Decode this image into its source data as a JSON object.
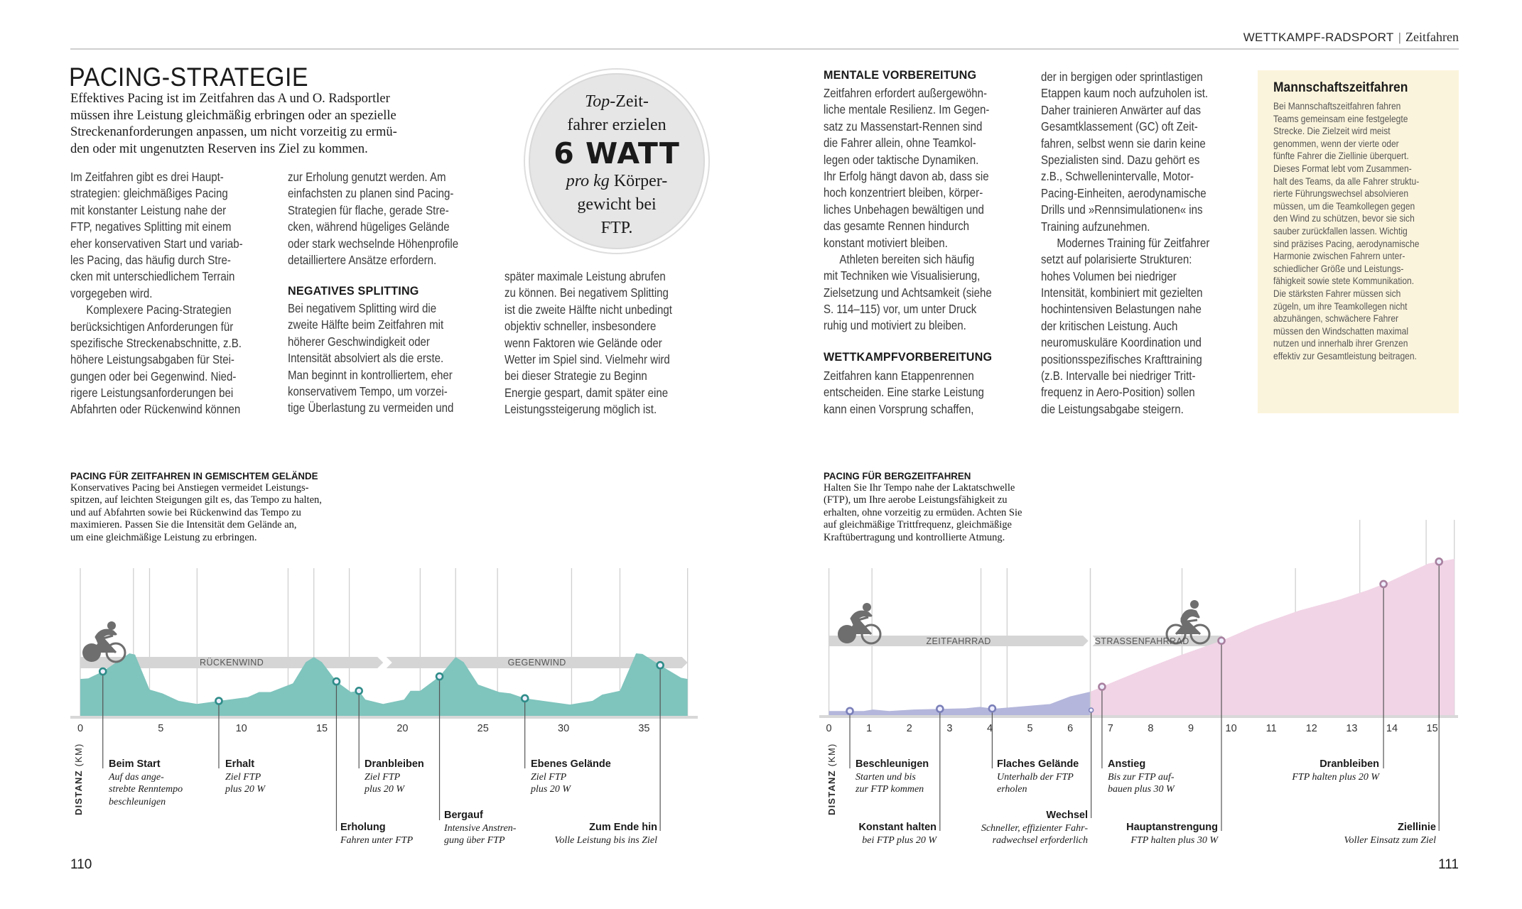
{
  "running_head": {
    "section": "WETTKAMPF-RADSPORT",
    "separator": "|",
    "subsection": "Zeitfahren"
  },
  "left_page": {
    "title": "PACING-STRATEGIE",
    "intro_lines": [
      "Effektives Pacing ist im Zeitfahren das A und O. Radsportler",
      "müssen ihre Leistung gleichmäßig erbringen oder an spezielle",
      "Streckenanforderungen anpassen, um nicht vorzeitig zu ermü-",
      "den oder mit ungenutzten Reserven ins Ziel zu kommen."
    ],
    "col1": [
      [
        "Im Zeitfahren gibt es drei Haupt-",
        "strategien: gleichmäßiges Pacing",
        "mit konstanter Leistung nahe der",
        "FTP, negatives Splitting mit einem",
        "eher konservativen Start und variab-",
        "les Pacing, das häufig durch Stre-",
        "cken mit unterschiedlichem Terrain",
        "vorgegeben wird."
      ],
      [
        "Komplexere Pacing-Strategien",
        "berücksichtigen Anforderungen für",
        "spezifische Streckenabschnitte, z.B.",
        "höhere Leistungsabgaben für Stei-",
        "gungen oder bei Gegenwind. Nied-",
        "rigere Leistungsanforderungen bei",
        "Abfahrten oder Rückenwind können"
      ]
    ],
    "col2a": [
      [
        "zur Erholung genutzt werden. Am",
        "einfachsten zu planen sind Pacing-",
        "Strategien für flache, gerade Stre-",
        "cken, während hügeliges Gelände",
        "oder stark wechselnde Höhenprofile",
        "detailliertere Ansätze erfordern."
      ]
    ],
    "col2_heading": "NEGATIVES SPLITTING",
    "col2b": [
      [
        "Bei negativem Splitting wird die",
        "zweite Hälfte beim Zeitfahren mit",
        "höherer Geschwindigkeit oder",
        "Intensität absolviert als die erste.",
        "Man beginnt in kontrolliertem, eher",
        "konservativem Tempo, um vorzei-",
        "tige Überlastung zu vermeiden und"
      ]
    ],
    "col3": [
      [
        "später maximale Leistung abrufen",
        "zu können. Bei negativem Splitting",
        "ist die zweite Hälfte nicht unbedingt",
        "objektiv schneller, insbesondere",
        "wenn Faktoren wie Gelände oder",
        "Wetter im Spiel sind. Vielmehr wird",
        "bei dieser Strategie zu Beginn",
        "Energie gespart, damit später eine",
        "Leistungssteigerung möglich ist."
      ]
    ],
    "quote": {
      "top_italic": "Top",
      "line1_rest": "-Zeit-",
      "line2": "fahrer erzielen",
      "big": "6 WATT",
      "line4_italic": "pro kg",
      "line4_rest": " Körper-",
      "line5": "gewicht bei",
      "line6": "FTP."
    },
    "page_number": "110"
  },
  "right_page": {
    "col1_heading": "MENTALE VORBEREITUNG",
    "col1": [
      [
        "Zeitfahren erfordert außergewöhn-",
        "liche mentale Resilienz. Im Gegen-",
        "satz zu Massenstart-Rennen sind",
        "die Fahrer allein, ohne Teamkol-",
        "legen oder taktische Dynamiken.",
        "Ihr Erfolg hängt davon ab, dass sie",
        "hoch konzentriert bleiben, körper-",
        "liches Unbehagen bewältigen und",
        "das gesamte Rennen hindurch",
        "konstant motiviert bleiben."
      ],
      [
        "Athleten bereiten sich häufig",
        "mit Techniken wie Visualisierung,",
        "Zielsetzung und Achtsamkeit (siehe",
        "S. 114–115) vor, um unter Druck",
        "ruhig und motiviert zu bleiben."
      ]
    ],
    "col1_heading2": "WETTKAMPFVORBEREITUNG",
    "col1b": [
      [
        "Zeitfahren kann Etappenrennen",
        "entscheiden. Eine starke Leistung",
        "kann einen Vorsprung schaffen,"
      ]
    ],
    "col2": [
      [
        "der in bergigen oder sprintlastigen",
        "Etappen kaum noch aufzuholen ist.",
        "Daher trainieren Anwärter auf das",
        "Gesamtklassement (GC) oft Zeit-",
        "fahren, selbst wenn sie darin keine",
        "Spezialisten sind. Dazu gehört es",
        "z.B., Schwellenintervalle, Motor-",
        "Pacing-Einheiten, aerodynamische",
        "Drills und »Rennsimulationen« ins",
        "Training aufzunehmen."
      ],
      [
        "Modernes Training für Zeitfahrer",
        "setzt auf polarisierte Strukturen:",
        "hohes Volumen bei niedriger",
        "Intensität, kombiniert mit gezielten",
        "hochintensiven Belastungen nahe",
        "der kritischen Leistung. Auch",
        "neuromuskuläre Koordination und",
        "positionsspezifisches Krafttraining",
        "(z.B. Intervalle bei niedriger Tritt-",
        "frequenz in Aero-Position) sollen",
        "die Leistungsabgabe steigern."
      ]
    ],
    "sidebar": {
      "title": "Mannschaftszeitfahren",
      "lines": [
        [
          "Bei Mannschaftszeitfahren fahren",
          "Teams gemeinsam eine festgelegte",
          "Strecke. Die Zielzeit wird meist",
          "genommen, wenn der vierte oder",
          "fünfte Fahrer die Ziellinie überquert.",
          "Dieses Format lebt vom Zusammen-",
          "halt des Teams, da alle Fahrer struktu-",
          "rierte Führungswechsel absolvieren",
          "müssen, um die Teamkollegen gegen",
          "den Wind zu schützen, bevor sie sich",
          "sauber zurückfallen lassen. Wichtig",
          "sind präzises Pacing, aerodynamische",
          "Harmonie zwischen Fahrern unter-",
          "schiedlicher Größe und Leistungs-",
          "fähigkeit sowie stete Kommunikation.",
          "Die stärksten Fahrer müssen sich",
          "zügeln, um ihre Teamkollegen nicht",
          "abzuhängen, schwächere Fahrer",
          "müssen den Windschatten maximal",
          "nutzen und innerhalb ihrer Grenzen",
          "effektiv zur Gesamtleistung beitragen."
        ]
      ]
    },
    "page_number": "111"
  },
  "chart_data": [
    {
      "type": "area",
      "title": "PACING FÜR ZEITFAHREN IN GEMISCHTEM GELÄNDE",
      "caption_lines": [
        "Konservatives Pacing bei Anstiegen vermeidet Leistungs-",
        "spitzen, auf leichten Steigungen gilt es, das Tempo zu halten,",
        "und auf Abfahrten sowie bei Rückenwind das Tempo zu",
        "maximieren. Passen Sie die Intensität dem Gelände an,",
        "um eine gleichmäßige Leistung zu erbringen."
      ],
      "xlabel": "DISTANZ",
      "xunit": "(KM)",
      "xlim": [
        0,
        37.7
      ],
      "xticks": [
        "0",
        "5",
        "10",
        "15",
        "20",
        "25",
        "30",
        "35"
      ],
      "profile_km": [
        0,
        0.5,
        1.4,
        3.05,
        3.4,
        4.3,
        5.1,
        6.1,
        7.25,
        8.65,
        10.4,
        11.1,
        11.8,
        13.2,
        14.0,
        14.5,
        15.0,
        15.9,
        16.8,
        17.3,
        17.7,
        18.8,
        20.1,
        20.5,
        21.1,
        22.3,
        23.3,
        23.8,
        24.7,
        26.0,
        26.7,
        27.6,
        30.4,
        31.8,
        32.4,
        33.5,
        34.5,
        34.9,
        36.0,
        37.3,
        37.7
      ],
      "profile_relative_elevation": [
        59,
        60,
        71,
        100,
        98,
        42,
        36,
        24,
        19,
        24,
        30,
        38,
        38,
        52,
        86,
        94,
        86,
        55,
        38,
        40,
        26,
        19,
        26,
        40,
        40,
        63,
        94,
        86,
        50,
        38,
        36,
        28,
        18,
        24,
        34,
        40,
        100,
        99,
        81,
        61,
        59
      ],
      "section_lines_km": [
        0,
        3.3,
        4.3,
        7.25,
        12.9,
        14.5,
        16.7,
        21.1,
        23.3,
        25.9,
        30.5,
        33.5,
        37.7
      ],
      "bands": [
        {
          "label": "RÜCKENWIND",
          "from_km": 0,
          "to_km": 18.8
        },
        {
          "label": "GEGENWIND",
          "from_km": 19.0,
          "to_km": 37.7
        }
      ],
      "colors": {
        "area": "#7fc4bd",
        "marker": "#2e8c88",
        "band": "#d5d5d5",
        "grid": "#d0d0d0"
      },
      "annotations": [
        {
          "km": 1.4,
          "title": "Beim Start",
          "lines": [
            "Auf das ange-",
            "strebte Renntempo",
            "beschleunigen"
          ]
        },
        {
          "km": 8.6,
          "title": "Erhalt",
          "lines": [
            "Ziel FTP",
            "plus 20 W"
          ]
        },
        {
          "km": 15.9,
          "title": "Erholung",
          "lines": [
            "Fahren unter FTP"
          ]
        },
        {
          "km": 17.3,
          "title": "Dranbleiben",
          "lines": [
            "Ziel FTP",
            "plus 20 W"
          ]
        },
        {
          "km": 22.3,
          "title": "Bergauf",
          "lines": [
            "Intensive Anstren-",
            "gung über FTP"
          ]
        },
        {
          "km": 27.6,
          "title": "Ebenes Gelände",
          "lines": [
            "Ziel FTP",
            "plus 20 W"
          ]
        },
        {
          "km": 36.0,
          "title": "Zum Ende hin",
          "lines": [
            "Volle Leistung bis ins Ziel"
          ]
        }
      ],
      "icons": [
        "time-trial-cyclist-icon"
      ]
    },
    {
      "type": "area",
      "title": "PACING FÜR BERGZEITFAHREN",
      "caption_lines": [
        "Halten Sie Ihr Tempo nahe der Laktatschwelle",
        "(FTP), um Ihre aerobe Leistungsfähigkeit zu",
        "erhalten, ohne vorzeitig zu ermüden. Achten Sie",
        "auf gleichmäßige Trittfrequenz, gleichmäßige",
        "Kraftübertragung und kontrollierte Atmung."
      ],
      "xlabel": "DISTANZ",
      "xunit": "(KM)",
      "xlim": [
        0,
        15.55
      ],
      "xticks": [
        "0",
        "1",
        "2",
        "3",
        "4",
        "5",
        "6",
        "7",
        "8",
        "9",
        "10",
        "11",
        "12",
        "13",
        "14",
        "15"
      ],
      "profile_km": [
        0,
        0.86,
        1.1,
        1.5,
        2.1,
        3.4,
        3.75,
        4.1,
        5.5,
        6.0,
        6.5,
        7.05,
        7.9,
        8.7,
        9.8,
        10.6,
        11.7,
        12.7,
        13.4,
        13.9,
        14.9,
        15.55
      ],
      "profile_relative_elevation": [
        2.6,
        2.6,
        3.6,
        2.6,
        3.6,
        4.4,
        5.3,
        4.1,
        7.1,
        12,
        15,
        21,
        30,
        38,
        48,
        57,
        67,
        74,
        80,
        85,
        97,
        100
      ],
      "bike_change_km": 6.5,
      "section_lines_km": [
        0,
        1.07,
        3.78,
        4.43,
        6.5,
        8.78,
        11.6,
        13.2,
        14.85,
        15.55
      ],
      "bands": [
        {
          "label": "ZEITFAHRRAD",
          "from_km": 0,
          "to_km": 6.45
        },
        {
          "label": "STRASSENFAHRRAD",
          "from_km": 6.55,
          "to_km": 9.9
        }
      ],
      "colors": {
        "area_before": "#b4b6db",
        "area_after": "#f1d4e6",
        "marker_before": "#7a7fb8",
        "marker_after": "#a8809f",
        "band": "#d5d5d5",
        "grid": "#d0d0d0"
      },
      "annotations": [
        {
          "km": 0.52,
          "title": "Beschleunigen",
          "lines": [
            "Starten und bis",
            "zur FTP kommen"
          ]
        },
        {
          "km": 2.76,
          "title": "Konstant halten",
          "lines": [
            "bei FTP plus 20 W"
          ]
        },
        {
          "km": 4.06,
          "title": "Flaches Gelände",
          "lines": [
            "Unterhalb der FTP",
            "erholen"
          ]
        },
        {
          "km": 6.52,
          "title": "Wechsel",
          "lines": [
            "Schneller, effizienter Fahr-",
            "radwechsel erforderlich"
          ]
        },
        {
          "km": 6.79,
          "title": "Anstieg",
          "lines": [
            "Bis zur FTP  auf-",
            "bauen plus 30 W"
          ]
        },
        {
          "km": 9.76,
          "title": "Hauptanstrengung",
          "lines": [
            "FTP halten plus 30 W"
          ]
        },
        {
          "km": 13.79,
          "title": "Dranbleiben",
          "lines": [
            "FTP halten plus 20 W"
          ]
        },
        {
          "km": 15.17,
          "title": "Ziellinie",
          "lines": [
            "Voller Einsatz zum Ziel"
          ]
        }
      ],
      "icons": [
        "time-trial-cyclist-icon",
        "road-cyclist-icon"
      ]
    }
  ]
}
